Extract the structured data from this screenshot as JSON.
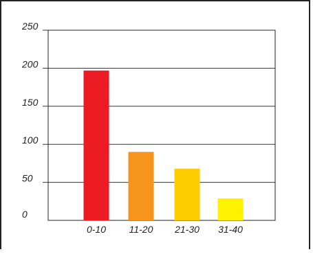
{
  "chart_data": {
    "type": "bar",
    "categories": [
      "0-10",
      "11-20",
      "21-30",
      "31-40"
    ],
    "values": [
      197,
      90,
      68,
      29
    ],
    "colors": [
      "#ed1c24",
      "#f7941d",
      "#ffcc00",
      "#fff200"
    ],
    "ylim": [
      0,
      250
    ],
    "yticks": [
      "0",
      "50",
      "100",
      "150",
      "200",
      "250"
    ],
    "grid": true,
    "title": "",
    "xlabel": "",
    "ylabel": ""
  }
}
